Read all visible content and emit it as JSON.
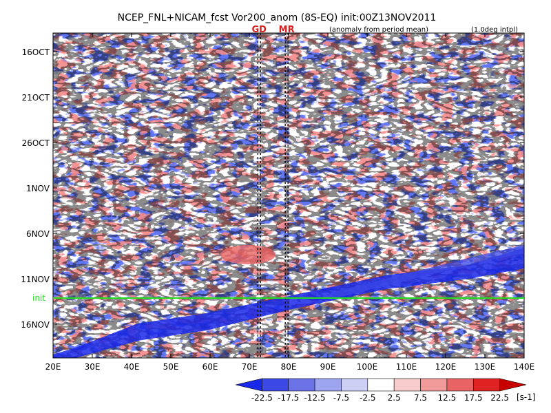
{
  "chart_data": {
    "type": "heatmap",
    "title": "NCEP_FNL+NICAM_fcst Vor200_anom (8S-EQ) init:00Z13NOV2011",
    "subtitle_left": "(anomaly from period mean)",
    "subtitle_right": "(1.0deg intpl)",
    "x_ticks": [
      "20E",
      "30E",
      "40E",
      "50E",
      "60E",
      "70E",
      "80E",
      "90E",
      "100E",
      "110E",
      "120E",
      "130E",
      "140E"
    ],
    "x_range": [
      20,
      140
    ],
    "y_ticks": [
      "16OCT",
      "21OCT",
      "26OCT",
      "1NOV",
      "6NOV",
      "11NOV",
      "16NOV"
    ],
    "init_line": {
      "label": "init",
      "date": "13NOV2011",
      "color": "#22dd22"
    },
    "markers": [
      {
        "label": "GD",
        "lon": 72.5,
        "color": "#d62020"
      },
      {
        "label": "MR",
        "lon": 79.5,
        "color": "#d62020"
      }
    ],
    "colorbar": {
      "unit": "[s-1]",
      "labels": [
        "-22.5",
        "-17.5",
        "-12.5",
        "-7.5",
        "-2.5",
        "2.5",
        "7.5",
        "12.5",
        "17.5",
        "22.5"
      ],
      "colors": [
        "#1a28e8",
        "#3c48e6",
        "#6a72e6",
        "#9ea4ee",
        "#cdd0f4",
        "#ffffff",
        "#f8cccc",
        "#f09a9a",
        "#e86464",
        "#e02222",
        "#c80000"
      ]
    }
  }
}
